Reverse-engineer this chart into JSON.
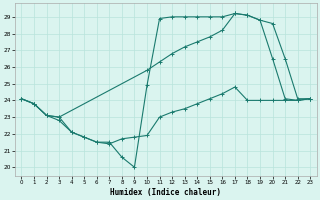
{
  "xlabel": "Humidex (Indice chaleur)",
  "line_color": "#1a7a6e",
  "bg_color": "#daf4ef",
  "grid_color": "#b8e4dc",
  "line1_x": [
    0,
    1,
    2,
    3,
    4,
    5,
    6,
    7,
    8,
    9,
    10,
    11,
    12,
    13,
    14,
    15,
    16,
    17,
    18,
    19,
    20,
    21,
    22,
    23
  ],
  "line1_y": [
    24.1,
    23.8,
    23.1,
    23.0,
    22.1,
    21.8,
    21.5,
    21.5,
    20.6,
    20.0,
    24.9,
    28.9,
    29.0,
    29.0,
    29.0,
    29.0,
    29.0,
    29.2,
    29.1,
    28.8,
    26.5,
    24.1,
    24.0,
    24.1
  ],
  "line2_x": [
    0,
    1,
    2,
    3,
    10,
    11,
    12,
    13,
    14,
    15,
    16,
    17,
    18,
    19,
    20,
    21,
    22,
    23
  ],
  "line2_y": [
    24.1,
    23.8,
    23.1,
    23.0,
    25.8,
    26.3,
    26.8,
    27.2,
    27.5,
    27.8,
    28.2,
    29.2,
    29.1,
    28.8,
    28.6,
    26.5,
    24.1,
    24.1
  ],
  "line3_x": [
    0,
    1,
    2,
    3,
    4,
    5,
    6,
    7,
    8,
    9,
    10,
    11,
    12,
    13,
    14,
    15,
    16,
    17,
    18,
    19,
    20,
    21,
    22,
    23
  ],
  "line3_y": [
    24.1,
    23.8,
    23.1,
    22.8,
    22.1,
    21.8,
    21.5,
    21.4,
    21.7,
    21.8,
    21.9,
    23.0,
    23.3,
    23.5,
    23.8,
    24.1,
    24.4,
    24.8,
    24.0,
    24.0,
    24.0,
    24.0,
    24.0,
    24.1
  ],
  "xlim": [
    -0.5,
    23.5
  ],
  "ylim": [
    19.5,
    29.8
  ],
  "yticks": [
    20,
    21,
    22,
    23,
    24,
    25,
    26,
    27,
    28,
    29
  ],
  "xticks": [
    0,
    1,
    2,
    3,
    4,
    5,
    6,
    7,
    8,
    9,
    10,
    11,
    12,
    13,
    14,
    15,
    16,
    17,
    18,
    19,
    20,
    21,
    22,
    23
  ]
}
